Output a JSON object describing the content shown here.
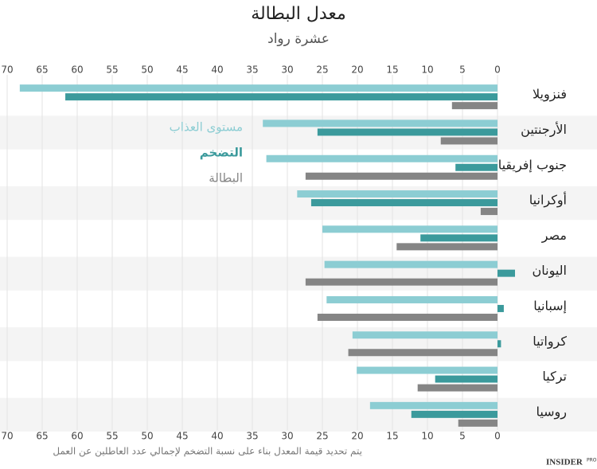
{
  "chart_data": {
    "type": "bar",
    "orientation": "horizontal",
    "title": "معدل البطالة",
    "subtitle": "عشرة رواد",
    "categories": [
      "فنزويلا",
      "الأرجنتين",
      "جنوب إفريقيا",
      "أوكرانيا",
      "مصر",
      "اليونان",
      "إسبانيا",
      "كرواتيا",
      "تركيا",
      "روسيا"
    ],
    "series": [
      {
        "name": "مستوى العذاب",
        "color": "#8ccdd3",
        "values": [
          68.2,
          33.5,
          33,
          28.6,
          25,
          24.7,
          24.4,
          20.7,
          20.1,
          18.2
        ]
      },
      {
        "name": "التضخم",
        "color": "#3b9a9c",
        "values": [
          61.7,
          25.7,
          6,
          26.6,
          11,
          -2.5,
          -0.9,
          -0.5,
          8.9,
          12.3
        ]
      },
      {
        "name": "البطالة",
        "color": "#858585",
        "values": [
          6.5,
          8.1,
          27.4,
          2.4,
          14.4,
          27.4,
          25.7,
          21.3,
          11.4,
          5.6
        ]
      }
    ],
    "xlim": [
      0,
      70
    ],
    "xticks": [
      0,
      5,
      10,
      15,
      20,
      25,
      30,
      35,
      40,
      45,
      50,
      55,
      60,
      65,
      70
    ],
    "x_reversed": true,
    "grid": true,
    "note": "يتم تحديد قيمة المعدل بناء على نسبة التضخم لإجمالي عدد العاطلين عن العمل",
    "logo": {
      "text": "INSIDER",
      "badge": "PRO"
    }
  }
}
